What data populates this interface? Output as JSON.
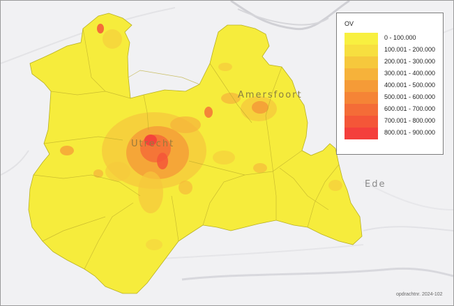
{
  "map": {
    "places": [
      {
        "name": "Utrecht"
      },
      {
        "name": "Amersfoort"
      },
      {
        "name": "Ede"
      }
    ],
    "credit": "opdrachtnr. 2024-102"
  },
  "legend": {
    "title": "OV",
    "classes": [
      {
        "label": "0 - 100.000",
        "color": "#f8f040"
      },
      {
        "label": "100.001 - 200.000",
        "color": "#f7df3f"
      },
      {
        "label": "200.001 - 300.000",
        "color": "#f6c83c"
      },
      {
        "label": "300.001 - 400.000",
        "color": "#f6b23a"
      },
      {
        "label": "400.001 - 500.000",
        "color": "#f59b37"
      },
      {
        "label": "500.001 - 600.000",
        "color": "#f58436"
      },
      {
        "label": "600.001 - 700.000",
        "color": "#f46c37"
      },
      {
        "label": "700.001 - 800.000",
        "color": "#f45638"
      },
      {
        "label": "800.001 - 900.000",
        "color": "#f43f3c"
      }
    ]
  }
}
